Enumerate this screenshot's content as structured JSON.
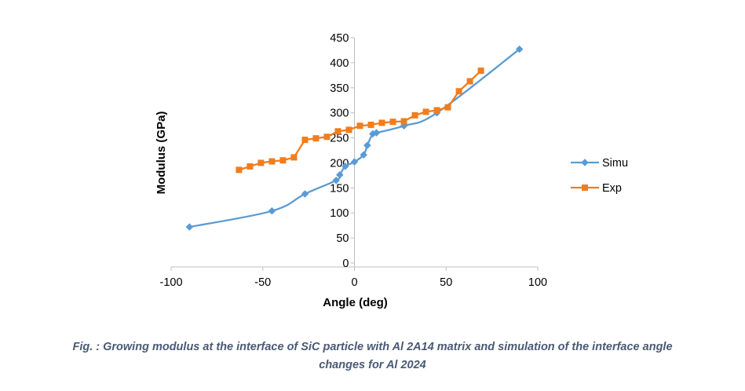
{
  "chart_data": {
    "type": "line",
    "title": "",
    "xlabel": "Angle (deg)",
    "ylabel": "Modulus (GPa)",
    "xlim": [
      -100,
      100
    ],
    "ylim": [
      0,
      450
    ],
    "x_ticks": [
      -100,
      -50,
      0,
      50,
      100
    ],
    "y_ticks": [
      0,
      50,
      100,
      150,
      200,
      250,
      300,
      350,
      400,
      450
    ],
    "grid": false,
    "legend_position": "right",
    "series": [
      {
        "name": "Simu",
        "color": "#5b9bd5",
        "marker": "diamond",
        "smooth": true,
        "points": [
          [
            -90,
            72
          ],
          [
            -45,
            104
          ],
          [
            -27,
            138
          ],
          [
            -10,
            165
          ],
          [
            -8,
            176
          ],
          [
            -5,
            193
          ],
          [
            0,
            202
          ],
          [
            5,
            216
          ],
          [
            7,
            235
          ],
          [
            10,
            258
          ],
          [
            12,
            260
          ],
          [
            27,
            274
          ],
          [
            45,
            300
          ],
          [
            90,
            427
          ]
        ]
      },
      {
        "name": "Exp",
        "color": "#f07d1e",
        "marker": "square",
        "smooth": false,
        "points": [
          [
            -63,
            186
          ],
          [
            -57,
            193
          ],
          [
            -51,
            200
          ],
          [
            -45,
            203
          ],
          [
            -39,
            205
          ],
          [
            -33,
            211
          ],
          [
            -27,
            246
          ],
          [
            -21,
            249
          ],
          [
            -15,
            252
          ],
          [
            -9,
            263
          ],
          [
            -3,
            266
          ],
          [
            3,
            274
          ],
          [
            9,
            276
          ],
          [
            15,
            280
          ],
          [
            21,
            282
          ],
          [
            27,
            283
          ],
          [
            33,
            295
          ],
          [
            39,
            302
          ],
          [
            45,
            305
          ],
          [
            51,
            311
          ],
          [
            57,
            343
          ],
          [
            63,
            363
          ],
          [
            69,
            384
          ]
        ]
      }
    ]
  },
  "caption": {
    "line1": "Fig. : Growing modulus at the interface of SiC particle with Al 2A14 matrix and simulation of the interface angle",
    "line2": "changes for Al 2024"
  }
}
